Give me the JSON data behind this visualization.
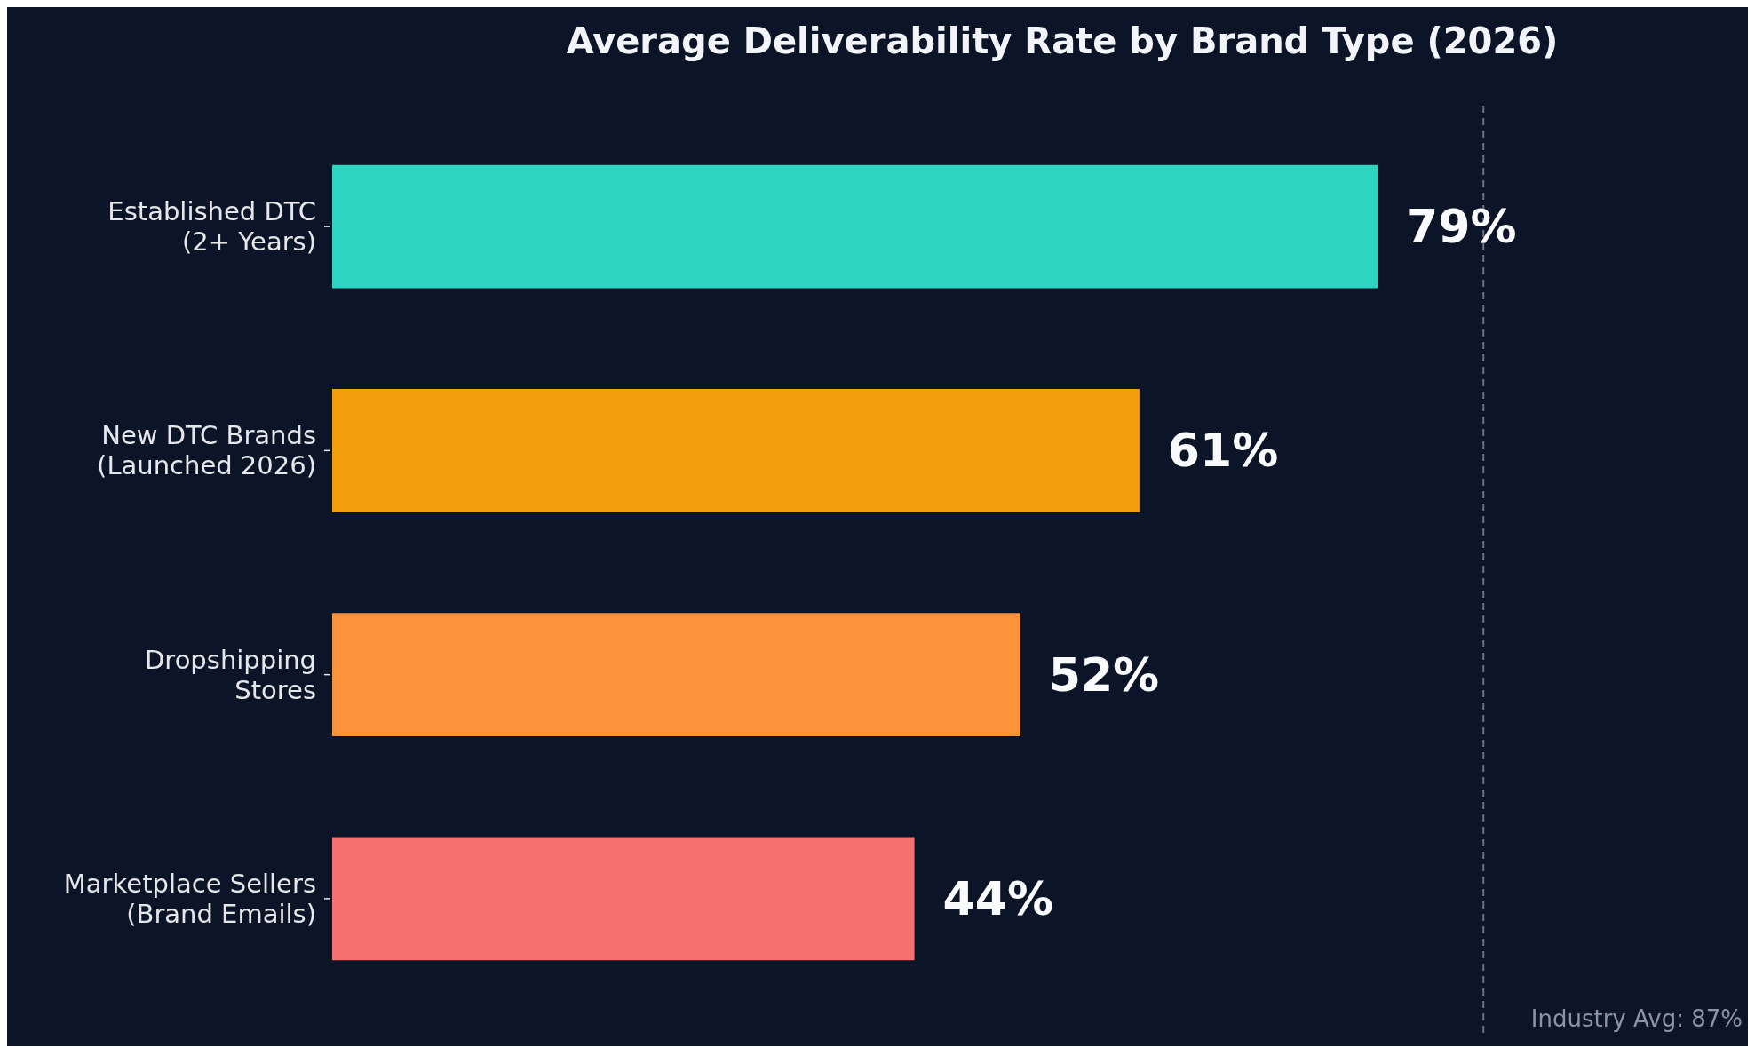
{
  "chart_data": {
    "type": "bar",
    "orientation": "horizontal",
    "title": "Average Deliverability Rate by Brand Type (2026)",
    "categories": [
      "Established DTC\n(2+ Years)",
      "New DTC Brands\n(Launched 2026)",
      "Dropshipping\nStores",
      "Marketplace Sellers\n(Brand Emails)"
    ],
    "values": [
      79,
      61,
      52,
      44
    ],
    "colors": [
      "#2dd4bf",
      "#f59e0b",
      "#fb923c",
      "#f87171"
    ],
    "value_labels": [
      "79%",
      "61%",
      "52%",
      "44%"
    ],
    "ref_lines": [
      {
        "axis": "x",
        "value": 87,
        "label": "Industry Avg: 87%",
        "color": "#6b7280",
        "line_style": "dashed"
      }
    ]
  }
}
